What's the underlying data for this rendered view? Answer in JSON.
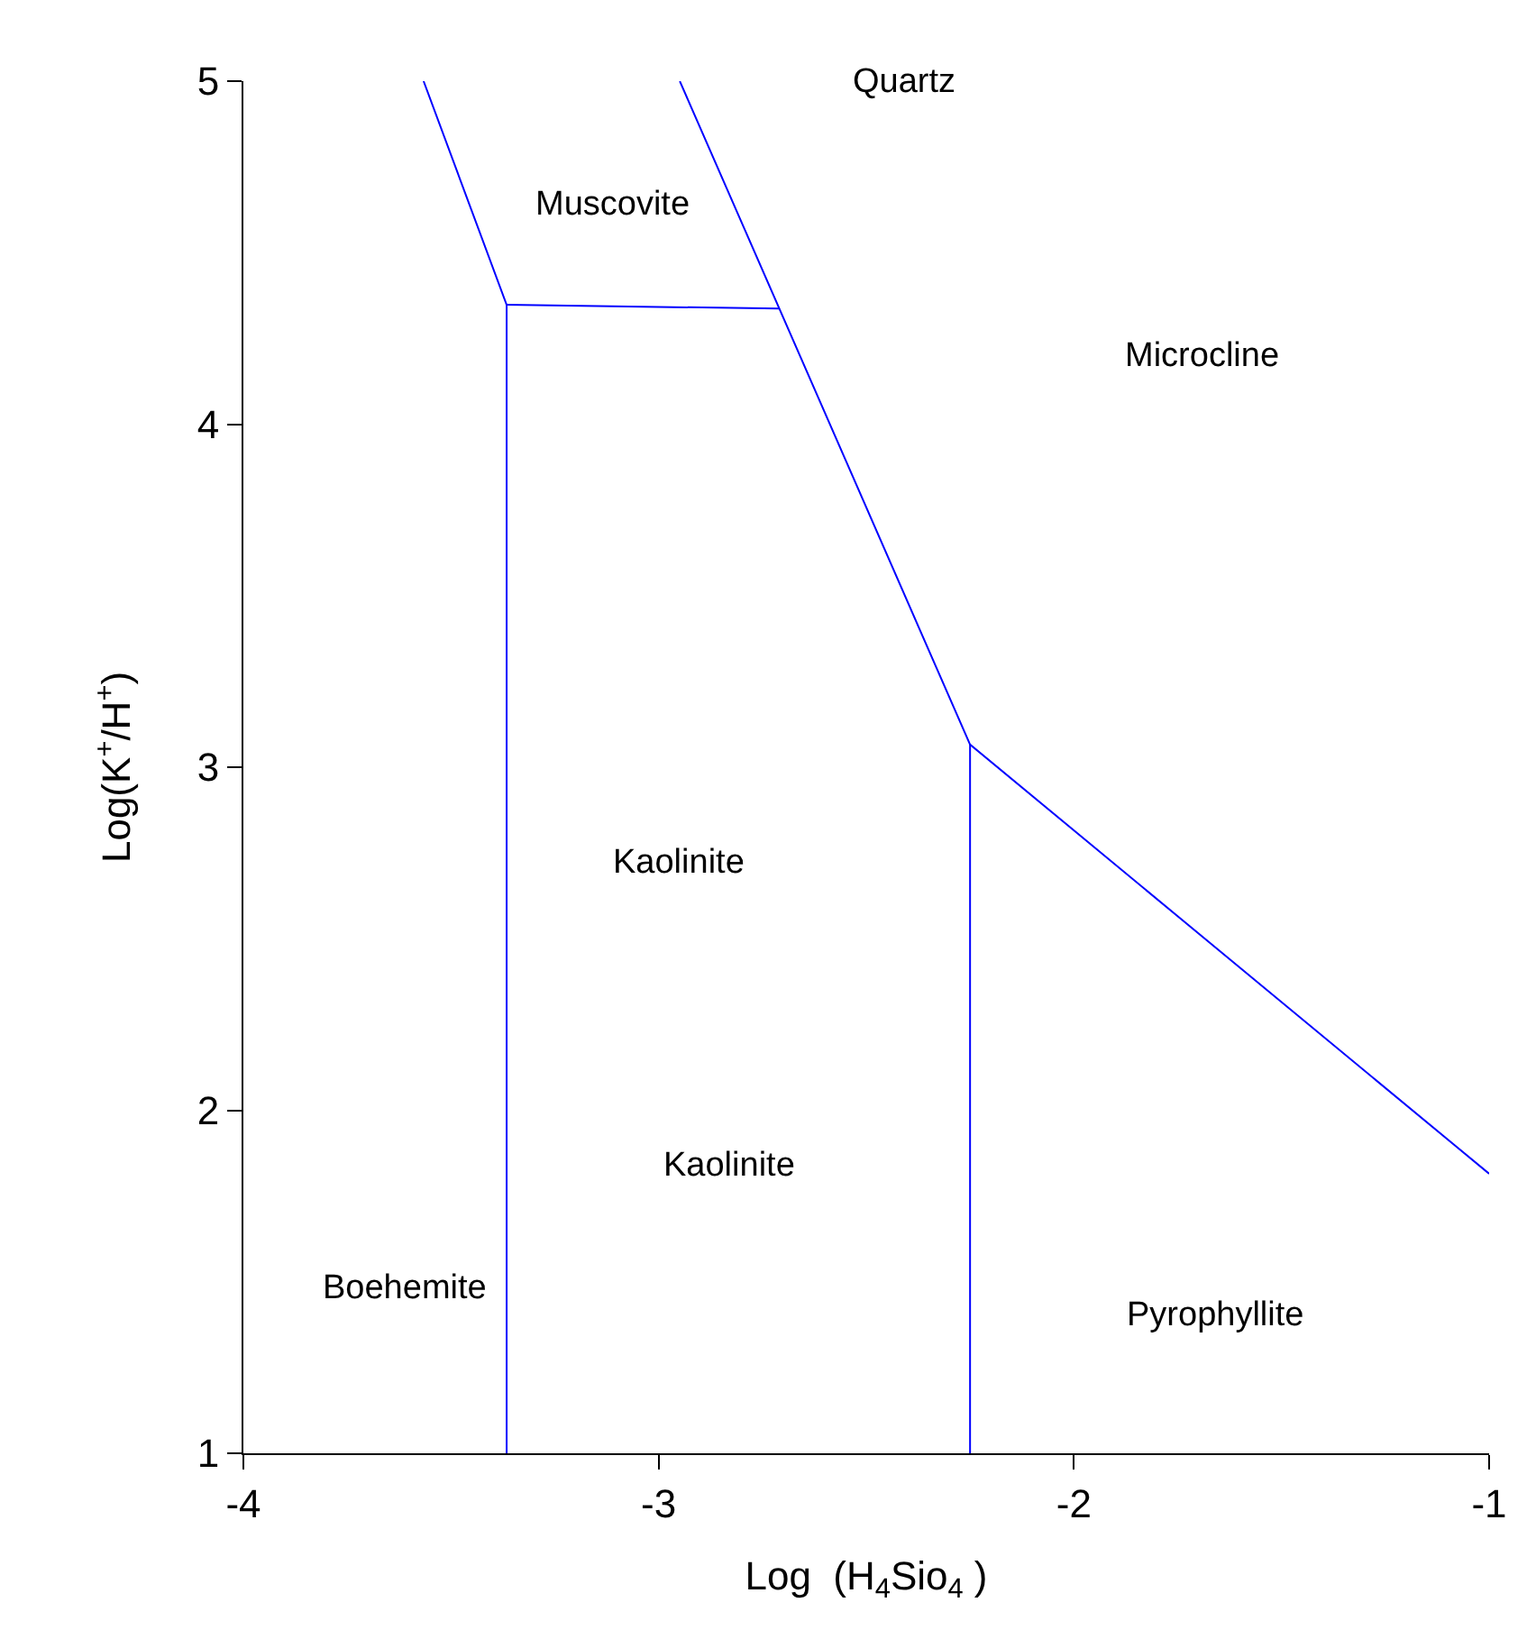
{
  "chart_data": {
    "type": "line",
    "xlabel": "Log  (H$_{4}$Sio$_{4}$ )",
    "ylabel": "Log(K$^{+}$/H$^{+}$)",
    "xlim": [
      -4,
      -1
    ],
    "xticks": [
      -4,
      -3,
      -2,
      -1
    ],
    "ylim": [
      1,
      5
    ],
    "yticks": [
      1,
      2,
      3,
      4,
      5
    ],
    "grid": false,
    "marker": "none",
    "line_style": "solid",
    "series": [
      {
        "color": "#0000ff",
        "x": [
          -3.566,
          -3.366,
          -3.366
        ],
        "values": [
          5,
          4.348,
          1
        ]
      },
      {
        "color": "#0000ff",
        "x": [
          -3.366,
          -2.71
        ],
        "values": [
          4.348,
          4.337
        ]
      },
      {
        "color": "#0000ff",
        "x": [
          -2.949,
          -2.25,
          -1
        ],
        "values": [
          5,
          3.066,
          1.815
        ]
      },
      {
        "color": "#0000ff",
        "x": [
          -2.25,
          -2.25
        ],
        "values": [
          3.066,
          1
        ]
      }
    ],
    "annotations": [
      "Quartz",
      "Muscovite",
      "Microcline",
      "Kaolinite",
      "Kaolinite",
      "Boehemite",
      "Pyrophyllite"
    ]
  }
}
